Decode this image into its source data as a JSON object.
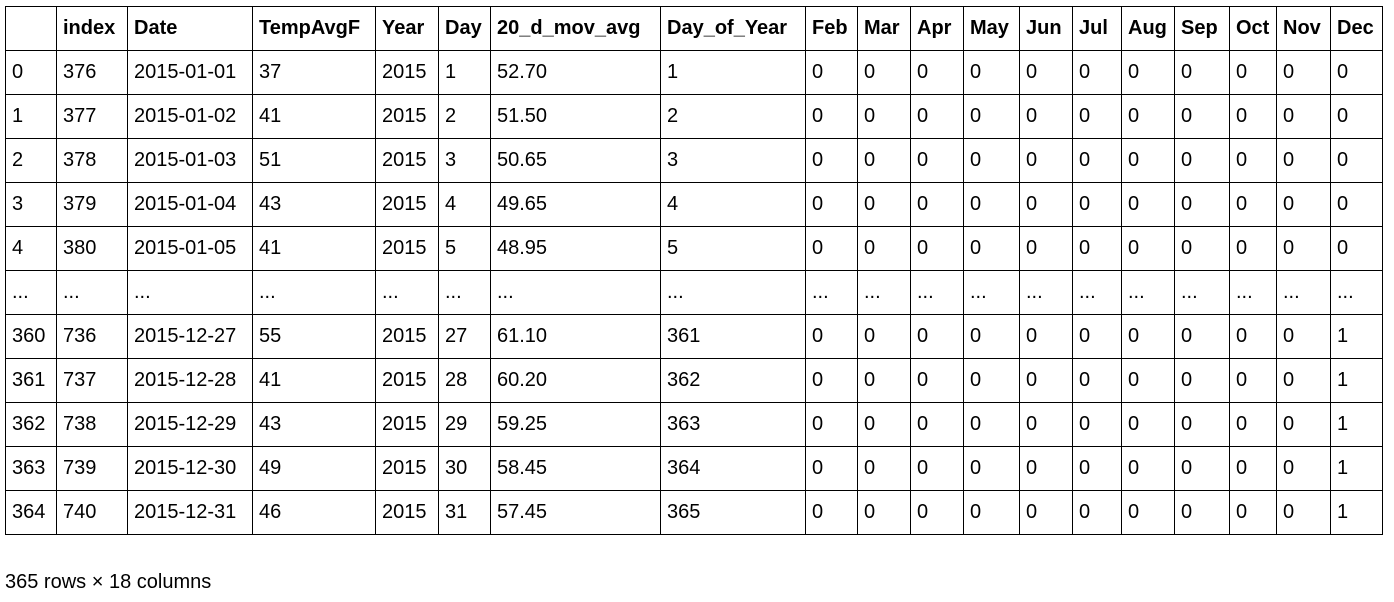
{
  "table": {
    "index_header": "",
    "columns": [
      "index",
      "Date",
      "TempAvgF",
      "Year",
      "Day",
      "20_d_mov_avg",
      "Day_of_Year",
      "Feb",
      "Mar",
      "Apr",
      "May",
      "Jun",
      "Jul",
      "Aug",
      "Sep",
      "Oct",
      "Nov",
      "Dec"
    ],
    "rows": [
      {
        "label": "0",
        "cells": [
          "376",
          "2015-01-01",
          "37",
          "2015",
          "1",
          "52.70",
          "1",
          "0",
          "0",
          "0",
          "0",
          "0",
          "0",
          "0",
          "0",
          "0",
          "0",
          "0"
        ]
      },
      {
        "label": "1",
        "cells": [
          "377",
          "2015-01-02",
          "41",
          "2015",
          "2",
          "51.50",
          "2",
          "0",
          "0",
          "0",
          "0",
          "0",
          "0",
          "0",
          "0",
          "0",
          "0",
          "0"
        ]
      },
      {
        "label": "2",
        "cells": [
          "378",
          "2015-01-03",
          "51",
          "2015",
          "3",
          "50.65",
          "3",
          "0",
          "0",
          "0",
          "0",
          "0",
          "0",
          "0",
          "0",
          "0",
          "0",
          "0"
        ]
      },
      {
        "label": "3",
        "cells": [
          "379",
          "2015-01-04",
          "43",
          "2015",
          "4",
          "49.65",
          "4",
          "0",
          "0",
          "0",
          "0",
          "0",
          "0",
          "0",
          "0",
          "0",
          "0",
          "0"
        ]
      },
      {
        "label": "4",
        "cells": [
          "380",
          "2015-01-05",
          "41",
          "2015",
          "5",
          "48.95",
          "5",
          "0",
          "0",
          "0",
          "0",
          "0",
          "0",
          "0",
          "0",
          "0",
          "0",
          "0"
        ]
      },
      {
        "label": "...",
        "cells": [
          "...",
          "...",
          "...",
          "...",
          "...",
          "...",
          "...",
          "...",
          "...",
          "...",
          "...",
          "...",
          "...",
          "...",
          "...",
          "...",
          "...",
          "..."
        ]
      },
      {
        "label": "360",
        "cells": [
          "736",
          "2015-12-27",
          "55",
          "2015",
          "27",
          "61.10",
          "361",
          "0",
          "0",
          "0",
          "0",
          "0",
          "0",
          "0",
          "0",
          "0",
          "0",
          "1"
        ]
      },
      {
        "label": "361",
        "cells": [
          "737",
          "2015-12-28",
          "41",
          "2015",
          "28",
          "60.20",
          "362",
          "0",
          "0",
          "0",
          "0",
          "0",
          "0",
          "0",
          "0",
          "0",
          "0",
          "1"
        ]
      },
      {
        "label": "362",
        "cells": [
          "738",
          "2015-12-29",
          "43",
          "2015",
          "29",
          "59.25",
          "363",
          "0",
          "0",
          "0",
          "0",
          "0",
          "0",
          "0",
          "0",
          "0",
          "0",
          "1"
        ]
      },
      {
        "label": "363",
        "cells": [
          "739",
          "2015-12-30",
          "49",
          "2015",
          "30",
          "58.45",
          "364",
          "0",
          "0",
          "0",
          "0",
          "0",
          "0",
          "0",
          "0",
          "0",
          "0",
          "1"
        ]
      },
      {
        "label": "364",
        "cells": [
          "740",
          "2015-12-31",
          "46",
          "2015",
          "31",
          "57.45",
          "365",
          "0",
          "0",
          "0",
          "0",
          "0",
          "0",
          "0",
          "0",
          "0",
          "0",
          "1"
        ]
      }
    ]
  },
  "shape_text": "365 rows × 18 columns"
}
